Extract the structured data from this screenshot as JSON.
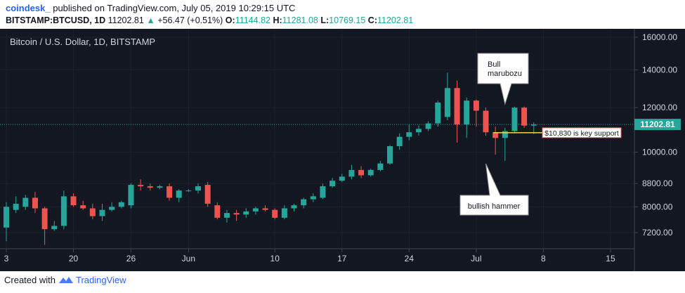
{
  "header": {
    "author": "coindesk_",
    "published": "published on TradingView.com, July 05, 2019 10:29:15 UTC",
    "symbol": "BITSTAMP:BTCUSD, 1D",
    "last": "11202.81",
    "arrow": "▲",
    "change": "+56.47 (+0.51%)",
    "o_label": "O:",
    "o_value": "11144.82",
    "h_label": "H:",
    "h_value": "11281.08",
    "l_label": "L:",
    "l_value": "10769.15",
    "c_label": "C:",
    "c_value": "11202.81"
  },
  "footer": {
    "created": "Created with",
    "brand": "TradingView"
  },
  "colors": {
    "background": "#131722",
    "up": "#26a69a",
    "down": "#ef5350",
    "support_line": "#f5d547",
    "price_label": "#26a69a"
  },
  "chart_data": {
    "type": "candlestick",
    "title": "Bitcoin / U.S. Dollar, 1D, BITSTAMP",
    "y_scale": "log",
    "ylim": [
      6700,
      16500
    ],
    "y_ticks": [
      7200,
      8000,
      8800,
      10000,
      12000,
      14000,
      16000
    ],
    "y_tick_labels": [
      "7200.00",
      "8000.00",
      "8800.00",
      "10000.00",
      "12000.00",
      "14000.00",
      "16000.00"
    ],
    "x_ticks": [
      {
        "label": "3",
        "day": 0
      },
      {
        "label": "20",
        "day": 7
      },
      {
        "label": "26",
        "day": 13
      },
      {
        "label": "Jun",
        "day": 19
      },
      {
        "label": "10",
        "day": 28
      },
      {
        "label": "17",
        "day": 35
      },
      {
        "label": "24",
        "day": 42
      },
      {
        "label": "Jul",
        "day": 49
      },
      {
        "label": "8",
        "day": 56
      },
      {
        "label": "15",
        "day": 63
      }
    ],
    "last_price_label": "11202.81",
    "last_price": 11202.81,
    "candles": [
      {
        "o": 7350,
        "h": 8150,
        "l": 6950,
        "c": 8000
      },
      {
        "o": 7900,
        "h": 8350,
        "l": 7800,
        "c": 8100
      },
      {
        "o": 8000,
        "h": 8400,
        "l": 7900,
        "c": 8300
      },
      {
        "o": 8300,
        "h": 8500,
        "l": 7800,
        "c": 7950
      },
      {
        "o": 7950,
        "h": 8000,
        "l": 6850,
        "c": 7300
      },
      {
        "o": 7300,
        "h": 7550,
        "l": 7250,
        "c": 7400
      },
      {
        "o": 7400,
        "h": 8550,
        "l": 7300,
        "c": 8350
      },
      {
        "o": 8350,
        "h": 8450,
        "l": 8000,
        "c": 8050
      },
      {
        "o": 8050,
        "h": 8200,
        "l": 7900,
        "c": 7950
      },
      {
        "o": 7950,
        "h": 8100,
        "l": 7600,
        "c": 7700
      },
      {
        "o": 7700,
        "h": 8100,
        "l": 7550,
        "c": 7900
      },
      {
        "o": 7900,
        "h": 8150,
        "l": 7850,
        "c": 8000
      },
      {
        "o": 8000,
        "h": 8200,
        "l": 7950,
        "c": 8150
      },
      {
        "o": 8050,
        "h": 8800,
        "l": 7950,
        "c": 8750
      },
      {
        "o": 8750,
        "h": 8950,
        "l": 8550,
        "c": 8700
      },
      {
        "o": 8700,
        "h": 8800,
        "l": 8550,
        "c": 8650
      },
      {
        "o": 8650,
        "h": 8750,
        "l": 8600,
        "c": 8700
      },
      {
        "o": 8700,
        "h": 8800,
        "l": 8200,
        "c": 8300
      },
      {
        "o": 8300,
        "h": 8600,
        "l": 8150,
        "c": 8550
      },
      {
        "o": 8550,
        "h": 8600,
        "l": 8500,
        "c": 8550
      },
      {
        "o": 8550,
        "h": 8800,
        "l": 8450,
        "c": 8700
      },
      {
        "o": 8750,
        "h": 8850,
        "l": 8000,
        "c": 8100
      },
      {
        "o": 8050,
        "h": 8150,
        "l": 7600,
        "c": 7650
      },
      {
        "o": 7650,
        "h": 7900,
        "l": 7500,
        "c": 7800
      },
      {
        "o": 7800,
        "h": 7900,
        "l": 7550,
        "c": 7750
      },
      {
        "o": 7750,
        "h": 7950,
        "l": 7650,
        "c": 7850
      },
      {
        "o": 7850,
        "h": 8000,
        "l": 7750,
        "c": 7950
      },
      {
        "o": 7950,
        "h": 8050,
        "l": 7850,
        "c": 7900
      },
      {
        "o": 7900,
        "h": 7950,
        "l": 7600,
        "c": 7650
      },
      {
        "o": 7650,
        "h": 8050,
        "l": 7600,
        "c": 7950
      },
      {
        "o": 7950,
        "h": 8100,
        "l": 7850,
        "c": 8050
      },
      {
        "o": 8050,
        "h": 8300,
        "l": 7950,
        "c": 8250
      },
      {
        "o": 8250,
        "h": 8450,
        "l": 8150,
        "c": 8350
      },
      {
        "o": 8300,
        "h": 8800,
        "l": 8250,
        "c": 8700
      },
      {
        "o": 8700,
        "h": 9000,
        "l": 8650,
        "c": 8900
      },
      {
        "o": 8900,
        "h": 9150,
        "l": 8850,
        "c": 9050
      },
      {
        "o": 9050,
        "h": 9500,
        "l": 8950,
        "c": 9300
      },
      {
        "o": 9300,
        "h": 9450,
        "l": 9000,
        "c": 9100
      },
      {
        "o": 9100,
        "h": 9350,
        "l": 9050,
        "c": 9300
      },
      {
        "o": 9300,
        "h": 9650,
        "l": 9250,
        "c": 9550
      },
      {
        "o": 9550,
        "h": 10300,
        "l": 9500,
        "c": 10250
      },
      {
        "o": 10250,
        "h": 10800,
        "l": 10100,
        "c": 10650
      },
      {
        "o": 10650,
        "h": 11200,
        "l": 10500,
        "c": 10850
      },
      {
        "o": 10850,
        "h": 11150,
        "l": 10700,
        "c": 11000
      },
      {
        "o": 11000,
        "h": 11350,
        "l": 10900,
        "c": 11250
      },
      {
        "o": 11250,
        "h": 12350,
        "l": 11100,
        "c": 12250
      },
      {
        "o": 11550,
        "h": 13850,
        "l": 11400,
        "c": 13000
      },
      {
        "o": 13000,
        "h": 13400,
        "l": 10400,
        "c": 11200
      },
      {
        "o": 11200,
        "h": 12500,
        "l": 10600,
        "c": 12350
      },
      {
        "o": 12350,
        "h": 12400,
        "l": 11100,
        "c": 11850
      },
      {
        "o": 11850,
        "h": 12000,
        "l": 10700,
        "c": 10850
      },
      {
        "o": 10850,
        "h": 11100,
        "l": 9900,
        "c": 10600
      },
      {
        "o": 10600,
        "h": 11050,
        "l": 9650,
        "c": 10900
      },
      {
        "o": 10900,
        "h": 12050,
        "l": 10800,
        "c": 12000
      },
      {
        "o": 12000,
        "h": 12050,
        "l": 11050,
        "c": 11150
      },
      {
        "o": 11150,
        "h": 11300,
        "l": 10770,
        "c": 11200
      }
    ],
    "annotations": [
      {
        "text_lines": [
          "Bull",
          "marubozu"
        ],
        "points_to_day": 52
      },
      {
        "text_lines": [
          "bullish hammer"
        ],
        "points_to_day": 50
      },
      {
        "text_lines": [
          "$10,830 is key support"
        ],
        "level": 10830
      }
    ]
  }
}
